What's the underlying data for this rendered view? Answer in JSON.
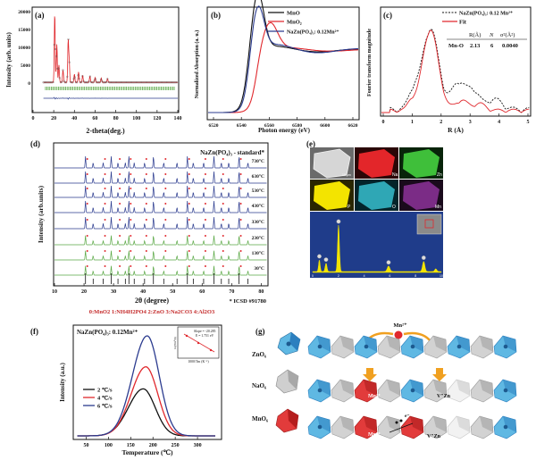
{
  "figure": {
    "panels": {
      "a": {
        "label": "(a)",
        "xlabel": "2-theta(deg.)",
        "ylabel": "Intensity (arb. units)",
        "xticks": [
          "0",
          "20",
          "40",
          "60",
          "80",
          "100",
          "120",
          "140"
        ],
        "yticks": [
          "0",
          "5000",
          "10000",
          "15000",
          "20000"
        ]
      },
      "b": {
        "label": "(b)",
        "xlabel": "Photon energy (eV)",
        "ylabel": "Normalized Absorption (a. u.)",
        "xticks": [
          "6520",
          "6540",
          "6560",
          "6580",
          "6600",
          "6620"
        ],
        "legend": [
          "MnO",
          "MnO2",
          "NaZn(PO4)3: 0.12Mn2+"
        ],
        "legend_display": [
          "MnO",
          "MnO₂",
          "NaZn(PO₄)₃: 0.12Mn²⁺"
        ]
      },
      "c": {
        "label": "(c)",
        "xlabel": "R (Å)",
        "ylabel": "Fourier transform magnitude",
        "xticks": [
          "0",
          "1",
          "2",
          "3",
          "4",
          "5"
        ],
        "legend": [
          "NaZn(PO4)3: 0.12 Mn2+",
          "Fit"
        ],
        "legend_display": [
          "NaZn(PO₄)₃: 0.12 Mn²⁺",
          "Fit"
        ],
        "table": {
          "headers": [
            "R(Å)",
            "N",
            "σ²(Å²)"
          ],
          "row_label": "Mn-O",
          "row": [
            "2.13",
            "6",
            "0.0040"
          ]
        }
      },
      "d": {
        "label": "(d)",
        "title": "NaZn(PO4)3 - standard*",
        "title_display": "NaZn(PO₄)₃ - standard*",
        "xlabel": "2θ (degree)",
        "ylabel": "Intensity (arb.units)",
        "xticks": [
          "10",
          "20",
          "30",
          "40",
          "50",
          "60",
          "70",
          "80"
        ],
        "temps": [
          "730°C",
          "630°C",
          "530°C",
          "430°C",
          "330°C",
          "230°C",
          "130°C",
          "30°C"
        ],
        "footnote": "* ICSD #91780",
        "phase_legend": "0:MnO2  1:NH4H2PO4  2:ZnO  3:Na2CO3  4:Al2O3"
      },
      "e": {
        "label": "(e)",
        "elements": [
          "Na",
          "Zn",
          "P",
          "O",
          "Mn"
        ],
        "scale": "10 μm",
        "xticks": [
          "0",
          "2",
          "4",
          "6",
          "8",
          "10"
        ]
      },
      "f": {
        "label": "(f)",
        "title": "NaZn(PO4)3: 0.12Mn2+",
        "title_display": "NaZn(PO₄)₃: 0.12Mn²⁺",
        "xlabel": "Temperature (℃)",
        "ylabel": "Intensity (a.u.)",
        "xticks": [
          "50",
          "100",
          "150",
          "200",
          "250",
          "300"
        ],
        "legend": [
          "2 ℃/s",
          "4 ℃/s",
          "6 ℃/s"
        ],
        "inset": {
          "slope": "Slope = -20.285",
          "energy": "E = 1.751 eV",
          "xlabel": "1000/Tm (K⁻¹)",
          "ylabel": "ln(Tm²/β)"
        }
      },
      "g": {
        "label": "(g)",
        "labels": [
          "ZnO6",
          "NaO6",
          "MnO6"
        ],
        "labels_display": [
          "ZnO₆",
          "NaO₆",
          "MnO₆"
        ],
        "ion": "Mn²⁺",
        "center_labels": [
          "Mn²⁺",
          "Mn²⁺"
        ],
        "vacancy": "V″Zn",
        "electron": "e⁻"
      }
    },
    "colors": {
      "black": "#111111",
      "red": "#e0282d",
      "blue": "#2b3b8f",
      "green": "#5aa845",
      "yellow": "#f3e400",
      "cyan": "#2fa7b5",
      "purple": "#7b2c86",
      "edsblue": "#1f3c8a"
    }
  }
}
